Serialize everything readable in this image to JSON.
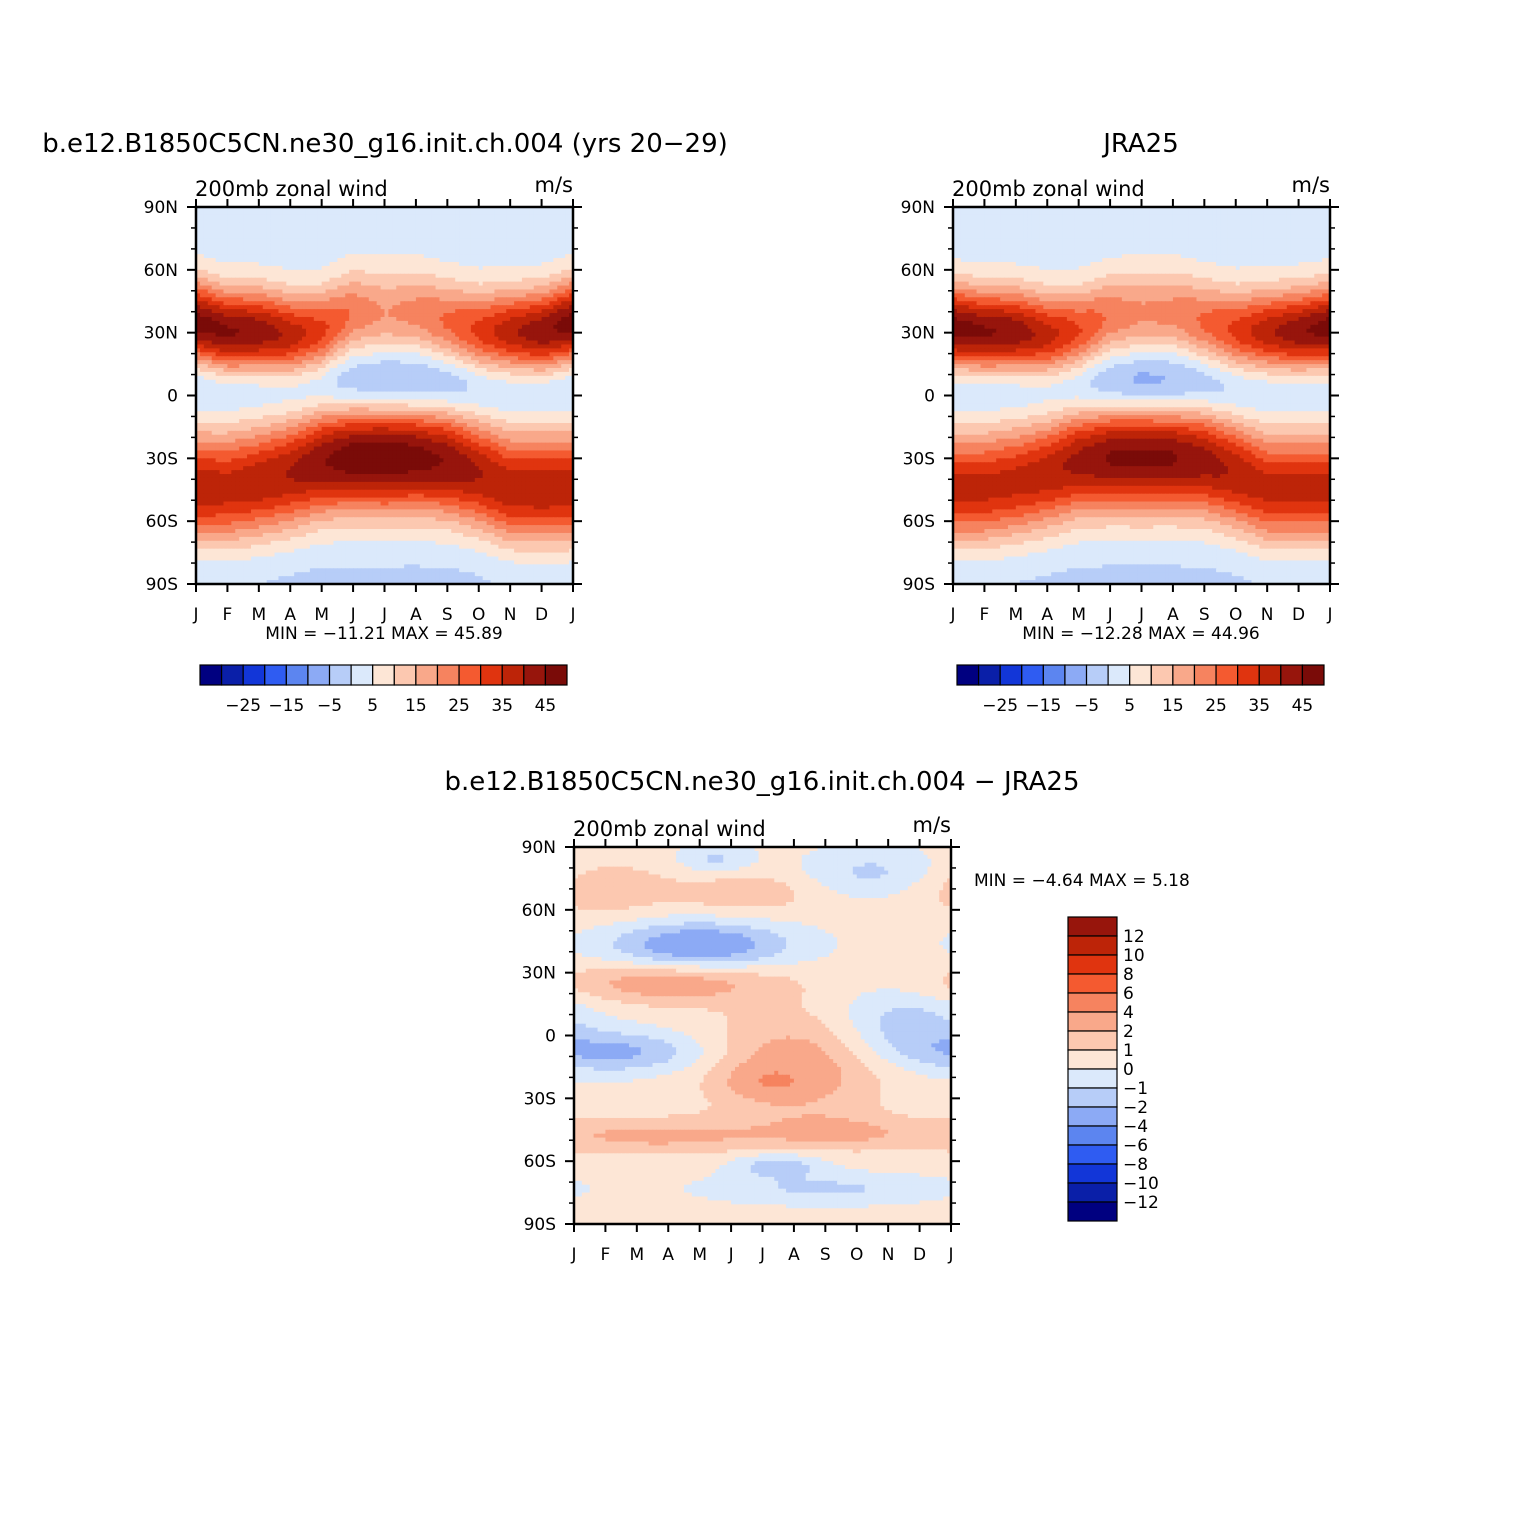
{
  "chart_data": [
    {
      "type": "heatmap",
      "title": "b.e12.B1850C5CN.ne30_g16.init.ch.004 (yrs 20−29)",
      "subtitle_left": "200mb  zonal  wind",
      "subtitle_right": "m/s",
      "x_ticks": [
        "J",
        "F",
        "M",
        "A",
        "M",
        "J",
        "J",
        "A",
        "S",
        "O",
        "N",
        "D",
        "J"
      ],
      "y_ticks": [
        "90N",
        "60N",
        "30N",
        "0",
        "30S",
        "60S",
        "90S"
      ],
      "stats": "MIN = −11.21  MAX =   45.89",
      "colorbar": {
        "levels": [
          -30,
          -25,
          -20,
          -15,
          -10,
          -5,
          0,
          5,
          10,
          15,
          20,
          25,
          30,
          35,
          40,
          45
        ],
        "labels": [
          "−25",
          "−15",
          "−5",
          "5",
          "15",
          "25",
          "35",
          "45"
        ],
        "colors": [
          "#000080",
          "#0a1fa8",
          "#1236d8",
          "#2f5cf2",
          "#5c85f0",
          "#8caaf5",
          "#b7cdf8",
          "#dbe9fb",
          "#fde6d6",
          "#fcc8b0",
          "#f9a88a",
          "#f6835f",
          "#f45a30",
          "#e0340f",
          "#bd2408",
          "#97150c",
          "#7a0b08"
        ]
      },
      "field": {
        "jet_nh": {
          "lat": [
            35,
            30,
            30,
            28,
            30,
            40,
            40,
            40,
            35,
            30,
            30,
            30,
            35
          ],
          "amp": [
            43,
            42,
            40,
            35,
            28,
            20,
            16,
            18,
            22,
            28,
            35,
            40,
            43
          ],
          "width": 14
        },
        "jet_sh": {
          "lat": [
            -45,
            -45,
            -42,
            -38,
            -32,
            -30,
            -30,
            -30,
            -32,
            -38,
            -45,
            -45,
            -45
          ],
          "amp": [
            35,
            34,
            35,
            36,
            40,
            44,
            45,
            43,
            40,
            36,
            35,
            36,
            35
          ],
          "width": 18
        },
        "tropical_min": {
          "lat": 5,
          "amp": [
            -4,
            -4,
            -4,
            -5,
            -7,
            -9,
            -11,
            -11,
            -9,
            -6,
            -4,
            -4,
            -4
          ]
        },
        "polar_nh": 2,
        "polar_sh": -2
      }
    },
    {
      "type": "heatmap",
      "title": "JRA25",
      "subtitle_left": "200mb  zonal  wind",
      "subtitle_right": "m/s",
      "x_ticks": [
        "J",
        "F",
        "M",
        "A",
        "M",
        "J",
        "J",
        "A",
        "S",
        "O",
        "N",
        "D",
        "J"
      ],
      "y_ticks": [
        "90N",
        "60N",
        "30N",
        "0",
        "30S",
        "60S",
        "90S"
      ],
      "stats": "MIN = −12.28  MAX =   44.96",
      "colorbar": {
        "levels": [
          -30,
          -25,
          -20,
          -15,
          -10,
          -5,
          0,
          5,
          10,
          15,
          20,
          25,
          30,
          35,
          40,
          45
        ],
        "labels": [
          "−25",
          "−15",
          "−5",
          "5",
          "15",
          "25",
          "35",
          "45"
        ],
        "colors": [
          "#000080",
          "#0a1fa8",
          "#1236d8",
          "#2f5cf2",
          "#5c85f0",
          "#8caaf5",
          "#b7cdf8",
          "#dbe9fb",
          "#fde6d6",
          "#fcc8b0",
          "#f9a88a",
          "#f6835f",
          "#f45a30",
          "#e0340f",
          "#bd2408",
          "#97150c",
          "#7a0b08"
        ]
      },
      "field": {
        "jet_nh": {
          "lat": [
            32,
            30,
            30,
            28,
            30,
            38,
            40,
            40,
            35,
            30,
            30,
            30,
            32
          ],
          "amp": [
            44,
            42,
            40,
            34,
            27,
            20,
            17,
            18,
            22,
            28,
            35,
            40,
            44
          ],
          "width": 14
        },
        "jet_sh": {
          "lat": [
            -45,
            -45,
            -42,
            -38,
            -32,
            -30,
            -30,
            -30,
            -32,
            -38,
            -45,
            -45,
            -45
          ],
          "amp": [
            33,
            33,
            33,
            34,
            37,
            41,
            42,
            41,
            38,
            35,
            33,
            33,
            33
          ],
          "width": 18
        },
        "tropical_min": {
          "lat": 5,
          "amp": [
            -4,
            -4,
            -4,
            -5,
            -7,
            -10,
            -12,
            -11,
            -8,
            -6,
            -4,
            -4,
            -4
          ]
        },
        "polar_nh": 2,
        "polar_sh": -2
      }
    },
    {
      "type": "heatmap",
      "title": "b.e12.B1850C5CN.ne30_g16.init.ch.004 − JRA25",
      "subtitle_left": "200mb  zonal  wind",
      "subtitle_right": "m/s",
      "x_ticks": [
        "J",
        "F",
        "M",
        "A",
        "M",
        "J",
        "J",
        "A",
        "S",
        "O",
        "N",
        "D",
        "J"
      ],
      "y_ticks": [
        "90N",
        "60N",
        "30N",
        "0",
        "30S",
        "60S",
        "90S"
      ],
      "stats": "MIN =   −4.64  MAX =    5.18",
      "colorbar": {
        "levels": [
          -12,
          -10,
          -8,
          -6,
          -4,
          -2,
          -1,
          0,
          1,
          2,
          4,
          6,
          8,
          10,
          12
        ],
        "labels": [
          "−12",
          "−10",
          "−8",
          "−6",
          "−4",
          "−2",
          "−1",
          "0",
          "1",
          "2",
          "4",
          "6",
          "8",
          "10",
          "12"
        ],
        "colors": [
          "#000080",
          "#0a1fa8",
          "#1236d8",
          "#2f5cf2",
          "#5c85f0",
          "#8caaf5",
          "#b7cdf8",
          "#dbe9fb",
          "#fde6d6",
          "#fcc8b0",
          "#f9a88a",
          "#f6835f",
          "#f45a30",
          "#e0340f",
          "#bd2408",
          "#97150c"
        ]
      },
      "field": {
        "diff": [
          {
            "m": 4.0,
            "lat": 43,
            "amp": -3.5,
            "sm": 2.0,
            "sl": 8
          },
          {
            "m": 3.0,
            "lat": 25,
            "amp": 2.5,
            "sm": 2.5,
            "sl": 7
          },
          {
            "m": 7.0,
            "lat": -15,
            "amp": 2.5,
            "sm": 2.0,
            "sl": 18
          },
          {
            "m": 6.3,
            "lat": -22,
            "amp": 2.0,
            "sm": 0.8,
            "sl": 5
          },
          {
            "m": 1.5,
            "lat": -8,
            "amp": -2.5,
            "sm": 2.0,
            "sl": 7
          },
          {
            "m": 10.5,
            "lat": 5,
            "amp": -2.0,
            "sm": 1.5,
            "sl": 12
          },
          {
            "m": 2.5,
            "lat": -48,
            "amp": 2.0,
            "sm": 3.0,
            "sl": 6
          },
          {
            "m": 8.5,
            "lat": -46,
            "amp": 1.5,
            "sm": 1.5,
            "sl": 6
          },
          {
            "m": 8.0,
            "lat": -73,
            "amp": -1.5,
            "sm": 2.5,
            "sl": 5
          },
          {
            "m": 6.5,
            "lat": -62,
            "amp": -2.0,
            "sm": 1.0,
            "sl": 4
          },
          {
            "m": 1.0,
            "lat": 70,
            "amp": 1.5,
            "sm": 1.5,
            "sl": 9
          },
          {
            "m": 5.5,
            "lat": 68,
            "amp": 1.5,
            "sm": 1.5,
            "sl": 7
          },
          {
            "m": 9.5,
            "lat": 78,
            "amp": -1.5,
            "sm": 1.5,
            "sl": 8
          },
          {
            "m": 4.5,
            "lat": 84,
            "amp": -1.5,
            "sm": 0.8,
            "sl": 5
          }
        ]
      }
    }
  ]
}
